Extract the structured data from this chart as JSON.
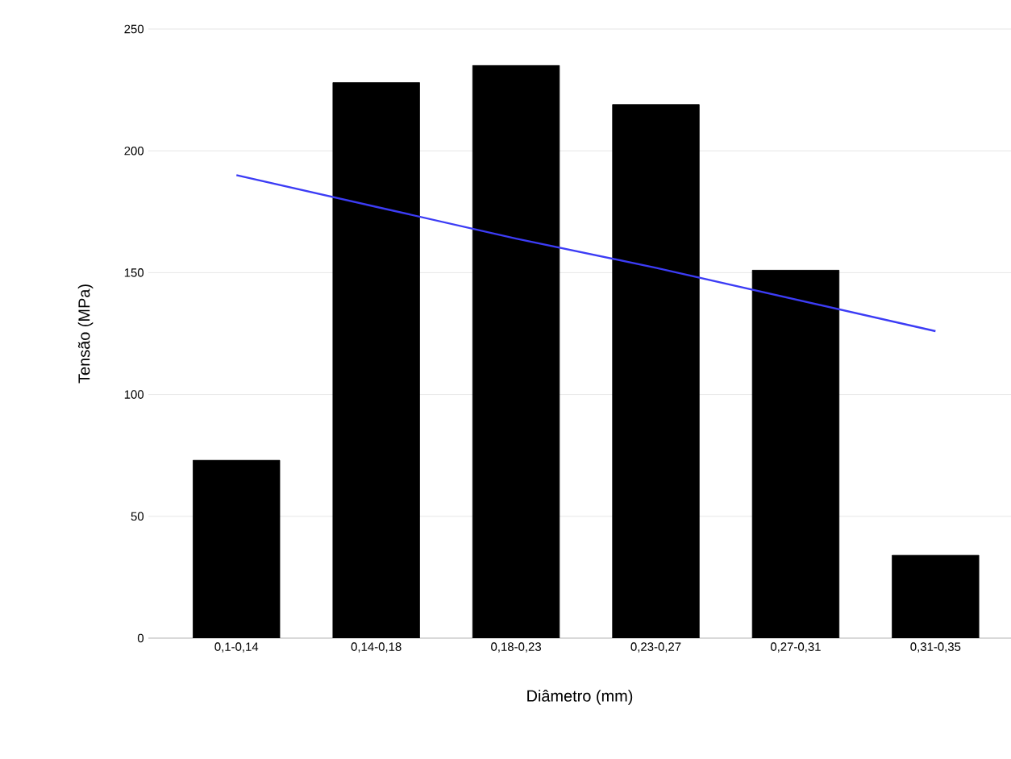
{
  "chart_data": {
    "type": "bar",
    "xlabel": "Diâmetro (mm)",
    "ylabel": "Tensão (MPa)",
    "categories": [
      "0,1-0,14",
      "0,14-0,18",
      "0,18-0,23",
      "0,23-0,27",
      "0,27-0,31",
      "0,31-0,35"
    ],
    "series": [
      {
        "color": "#000000",
        "values": [
          73,
          228,
          235,
          219,
          151,
          34
        ]
      },
      {
        "type": "line",
        "color": "#3c3cf5",
        "values": [
          190,
          177,
          164,
          152,
          139,
          126
        ]
      }
    ],
    "ylim": [
      0,
      250
    ],
    "yticks": [
      0,
      50,
      100,
      150,
      200,
      250
    ],
    "grid": "y"
  }
}
